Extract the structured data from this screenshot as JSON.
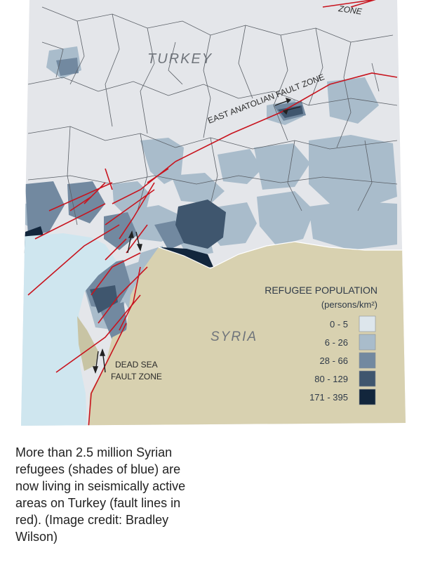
{
  "map": {
    "country_labels": {
      "turkey": "TURKEY",
      "syria": "SYRIA"
    },
    "fault_labels": {
      "north_zone": "ZONE",
      "east_anatolian": "EAST ANATOLIAN FAULT ZONE",
      "dead_sea_line1": "DEAD SEA",
      "dead_sea_line2": "FAULT ZONE"
    },
    "colors": {
      "sea": "#cfe6ef",
      "syria_land": "#d8d1b0",
      "turkey_base": "#e4e6ea",
      "fault_line": "#c8141e",
      "border_line": "#ffffff"
    }
  },
  "legend": {
    "title": "REFUGEE POPULATION",
    "unit": "(persons/km²)",
    "classes": [
      {
        "range": "0 - 5",
        "color": "#dde6ec"
      },
      {
        "range": "6 - 26",
        "color": "#a9bccb"
      },
      {
        "range": "28 - 66",
        "color": "#7289a0"
      },
      {
        "range": "80 - 129",
        "color": "#3f566e"
      },
      {
        "range": "171 - 395",
        "color": "#12263c"
      }
    ]
  },
  "caption": {
    "text": "More than 2.5 million Syrian refugees (shades of blue) are now living in seismically active areas on Turkey (fault lines in red). (Image credit: Bradley Wilson)"
  }
}
